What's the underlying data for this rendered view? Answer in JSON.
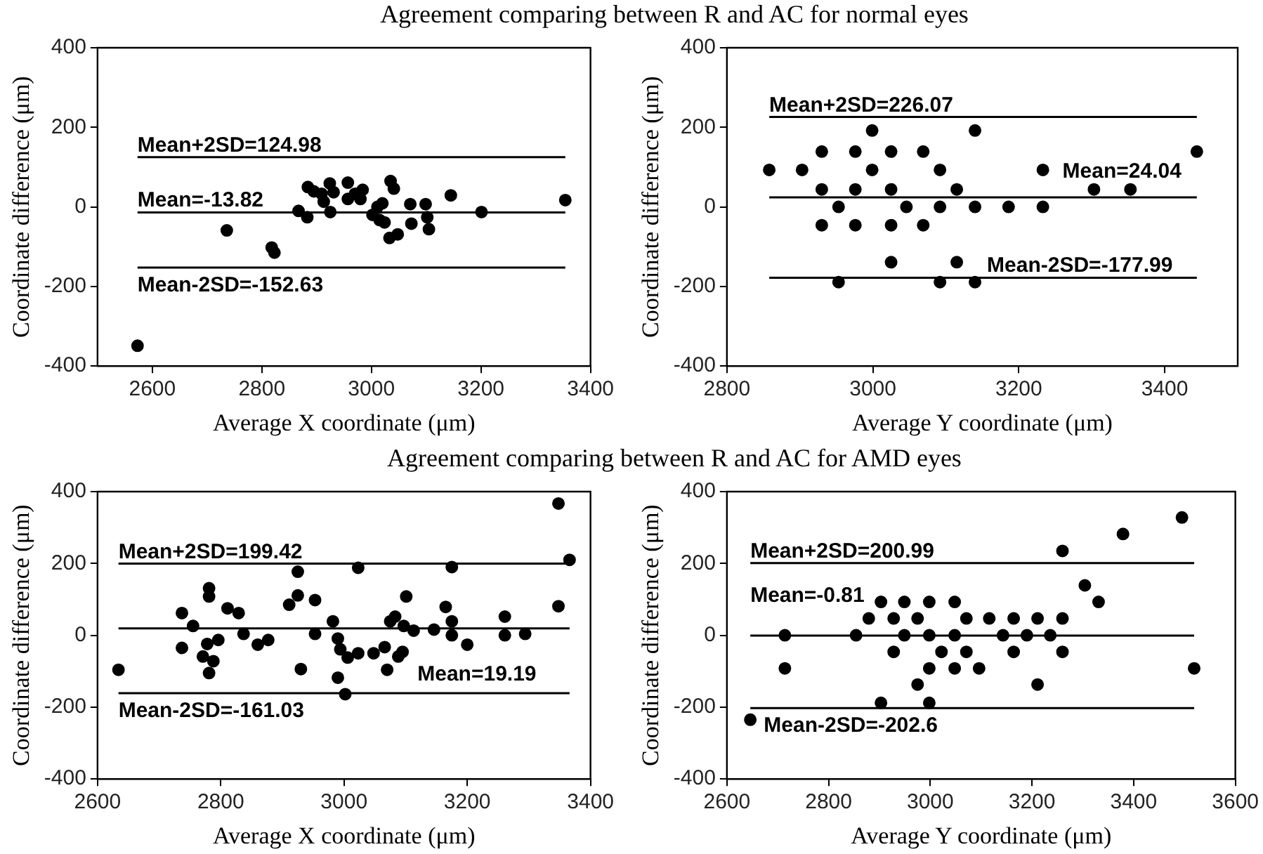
{
  "chart_data": [
    {
      "type": "scatter",
      "title": "Agreement comparing between R and AC for normal eyes",
      "xlabel": "Average X coordinate (μm)",
      "ylabel": "Coordinate difference (μm)",
      "color": "#000000",
      "marker": "circle",
      "grid": false,
      "legend": false,
      "x": [
        2573,
        2736,
        2818,
        2823,
        2867,
        2883,
        2884,
        2895,
        2909,
        2913,
        2924,
        2925,
        2931,
        2957,
        2957,
        2970,
        2980,
        2984,
        3002,
        3011,
        3015,
        3020,
        3024,
        3033,
        3035,
        3041,
        3048,
        3071,
        3073,
        3099,
        3102,
        3105,
        3145,
        3201,
        3354
      ],
      "values": [
        -349,
        -59,
        -102,
        -115,
        -10,
        -26,
        50,
        39,
        33,
        13,
        59,
        -13,
        37,
        61,
        20,
        33,
        20,
        43,
        -20,
        0,
        -33,
        9,
        -39,
        -78,
        65,
        46,
        -69,
        7,
        -42,
        7,
        -26,
        -56,
        29,
        -13,
        17
      ],
      "xlim": [
        2500,
        3400
      ],
      "xticks": [
        2600,
        2800,
        3000,
        3200,
        3400
      ],
      "ylim": [
        -400,
        400
      ],
      "yticks": [
        -400,
        -200,
        0,
        200,
        400
      ],
      "ref_lines": [
        {
          "axis": "y",
          "value": 124.98,
          "label": "Mean+2SD=124.98"
        },
        {
          "axis": "y",
          "value": -13.82,
          "label": "Mean=-13.82"
        },
        {
          "axis": "y",
          "value": -152.63,
          "label": "Mean-2SD=-152.63"
        }
      ]
    },
    {
      "type": "scatter",
      "xlabel": "Average Y coordinate (μm)",
      "ylabel": "Coordinate difference (μm)",
      "color": "#000000",
      "marker": "circle",
      "grid": false,
      "legend": false,
      "x": [
        2858,
        2903,
        2930,
        2930,
        2930,
        2953,
        2953,
        2976,
        2976,
        2976,
        2999,
        2999,
        3025,
        3025,
        3025,
        3025,
        3046,
        3069,
        3069,
        3092,
        3092,
        3092,
        3115,
        3115,
        3140,
        3140,
        3140,
        3186,
        3233,
        3233,
        3303,
        3353,
        3444
      ],
      "values": [
        93,
        93,
        139,
        44,
        -46,
        0,
        -189,
        139,
        44,
        -46,
        192,
        93,
        139,
        44,
        -46,
        -139,
        0,
        139,
        -46,
        93,
        0,
        -189,
        44,
        -139,
        192,
        0,
        -189,
        0,
        93,
        0,
        44,
        44,
        139
      ],
      "xlim": [
        2800,
        3500
      ],
      "xticks": [
        2800,
        3000,
        3200,
        3400
      ],
      "ylim": [
        -400,
        400
      ],
      "yticks": [
        -400,
        -200,
        0,
        200,
        400
      ],
      "ref_lines": [
        {
          "axis": "y",
          "value": 226.07,
          "label": "Mean+2SD=226.07"
        },
        {
          "axis": "y",
          "value": 24.04,
          "label": "Mean=24.04"
        },
        {
          "axis": "y",
          "value": -177.99,
          "label": "Mean-2SD=-177.99"
        }
      ]
    },
    {
      "type": "scatter",
      "title": "Agreement comparing between R and AC for AMD eyes",
      "xlabel": "Average X coordinate (μm)",
      "ylabel": "Coordinate difference (μm)",
      "color": "#000000",
      "marker": "circle",
      "grid": false,
      "legend": false,
      "x": [
        2634,
        2737,
        2737,
        2755,
        2771,
        2778,
        2781,
        2781,
        2781,
        2788,
        2796,
        2811,
        2829,
        2837,
        2860,
        2877,
        2911,
        2925,
        2925,
        2930,
        2953,
        2953,
        2982,
        2990,
        2990,
        2994,
        3002,
        3006,
        3023,
        3023,
        3048,
        3066,
        3070,
        3075,
        3083,
        3088,
        3095,
        3101,
        3097,
        3113,
        3146,
        3165,
        3175,
        3175,
        3175,
        3200,
        3261,
        3261,
        3294,
        3348,
        3348,
        3366
      ],
      "values": [
        -96,
        62,
        -35,
        26,
        -59,
        -24,
        131,
        108,
        -105,
        -72,
        -13,
        75,
        62,
        4,
        -26,
        -13,
        85,
        177,
        111,
        -94,
        98,
        4,
        39,
        -9,
        -118,
        -39,
        -164,
        -62,
        188,
        -50,
        -50,
        -33,
        -96,
        39,
        52,
        -59,
        -46,
        108,
        26,
        13,
        16,
        79,
        190,
        39,
        0,
        -26,
        52,
        0,
        4,
        367,
        81,
        210
      ],
      "xlim": [
        2600,
        3400
      ],
      "xticks": [
        2600,
        2800,
        3000,
        3200,
        3400
      ],
      "ylim": [
        -400,
        400
      ],
      "yticks": [
        -400,
        -200,
        0,
        200,
        400
      ],
      "ref_lines": [
        {
          "axis": "y",
          "value": 199.42,
          "label": "Mean+2SD=199.42"
        },
        {
          "axis": "y",
          "value": 19.19,
          "label": "Mean=19.19"
        },
        {
          "axis": "y",
          "value": -161.03,
          "label": "Mean-2SD=-161.03"
        }
      ]
    },
    {
      "type": "scatter",
      "xlabel": "Average Y coordinate (μm)",
      "ylabel": "Coordinate difference (μm)",
      "color": "#000000",
      "marker": "circle",
      "grid": false,
      "legend": false,
      "x": [
        2646,
        2714,
        2714,
        2854,
        2879,
        2903,
        2903,
        2928,
        2928,
        2949,
        2949,
        2975,
        2975,
        2998,
        2998,
        2998,
        2998,
        3022,
        3048,
        3048,
        3048,
        3071,
        3071,
        3096,
        3116,
        3143,
        3164,
        3164,
        3190,
        3211,
        3211,
        3236,
        3260,
        3260,
        3260,
        3304,
        3331,
        3379,
        3495,
        3519
      ],
      "values": [
        -235,
        0,
        -92,
        0,
        47,
        93,
        -188,
        47,
        -46,
        93,
        0,
        47,
        -137,
        93,
        0,
        -92,
        -188,
        -46,
        93,
        0,
        -92,
        47,
        -46,
        -92,
        47,
        0,
        47,
        -46,
        0,
        47,
        -137,
        0,
        235,
        47,
        -46,
        139,
        93,
        282,
        328,
        -92
      ],
      "xlim": [
        2600,
        3600
      ],
      "xticks": [
        2600,
        2800,
        3000,
        3200,
        3400,
        3600
      ],
      "ylim": [
        -400,
        400
      ],
      "yticks": [
        -400,
        -200,
        0,
        200,
        400
      ],
      "ref_lines": [
        {
          "axis": "y",
          "value": 200.99,
          "label": "Mean+2SD=200.99"
        },
        {
          "axis": "y",
          "value": -0.81,
          "label": "Mean=-0.81"
        },
        {
          "axis": "y",
          "value": -202.6,
          "label": "Mean-2SD=-202.6"
        }
      ]
    }
  ]
}
